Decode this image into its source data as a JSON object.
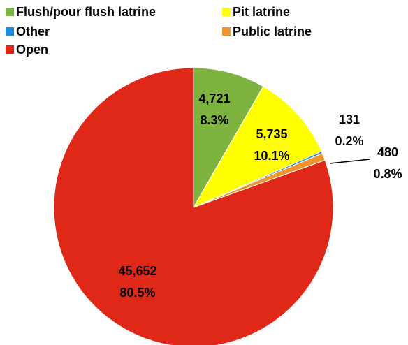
{
  "chart_data": {
    "type": "pie",
    "categories": [
      "Flush/pour flush latrine",
      "Pit latrine",
      "Other",
      "Public latrine",
      "Open"
    ],
    "values": [
      4721,
      5735,
      131,
      480,
      45652
    ],
    "value_labels": [
      "4,721",
      "5,735",
      "131",
      "480",
      "45,652"
    ],
    "percent_labels": [
      "8.3%",
      "10.1%",
      "0.2%",
      "0.8%",
      "80.5%"
    ],
    "colors": [
      "#7db33e",
      "#ffff00",
      "#1e8fe0",
      "#f0962d",
      "#e02818"
    ],
    "legend": "top"
  }
}
